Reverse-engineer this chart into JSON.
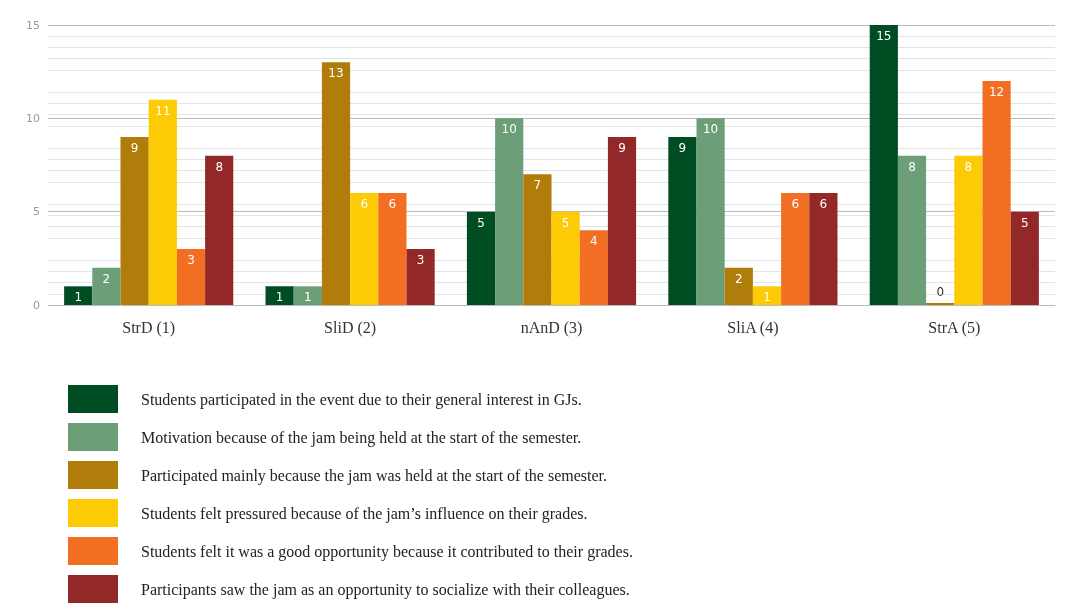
{
  "chart_data": {
    "type": "bar",
    "categories": [
      "StrD (1)",
      "SliD (2)",
      "nAnD (3)",
      "SliA (4)",
      "StrA (5)"
    ],
    "series": [
      {
        "name": "Students participated in the event due to their general interest in GJs.",
        "color": "#004d23",
        "values": [
          1,
          1,
          5,
          9,
          15
        ]
      },
      {
        "name": "Motivation because of the jam being held at the start of the semester.",
        "color": "#6c9e78",
        "values": [
          2,
          1,
          10,
          10,
          8
        ]
      },
      {
        "name": "Participated mainly because the jam was held at the start of the semester.",
        "color": "#b07d0b",
        "values": [
          9,
          13,
          7,
          2,
          0
        ]
      },
      {
        "name": "Students felt pressured because of the jam’s influence on their grades.",
        "color": "#fccb05",
        "values": [
          11,
          6,
          5,
          1,
          8
        ]
      },
      {
        "name": "Students felt it was a good opportunity because it contributed to their grades.",
        "color": "#f16e22",
        "values": [
          3,
          6,
          4,
          6,
          12
        ]
      },
      {
        "name": "Participants saw the jam as an opportunity to socialize with their colleagues.",
        "color": "#922827",
        "values": [
          8,
          3,
          9,
          6,
          5
        ]
      }
    ],
    "ylim": [
      0,
      15
    ],
    "yticks": [
      0,
      5,
      10,
      15
    ],
    "grid": "y",
    "legend": "bottom",
    "data_labels": true
  }
}
